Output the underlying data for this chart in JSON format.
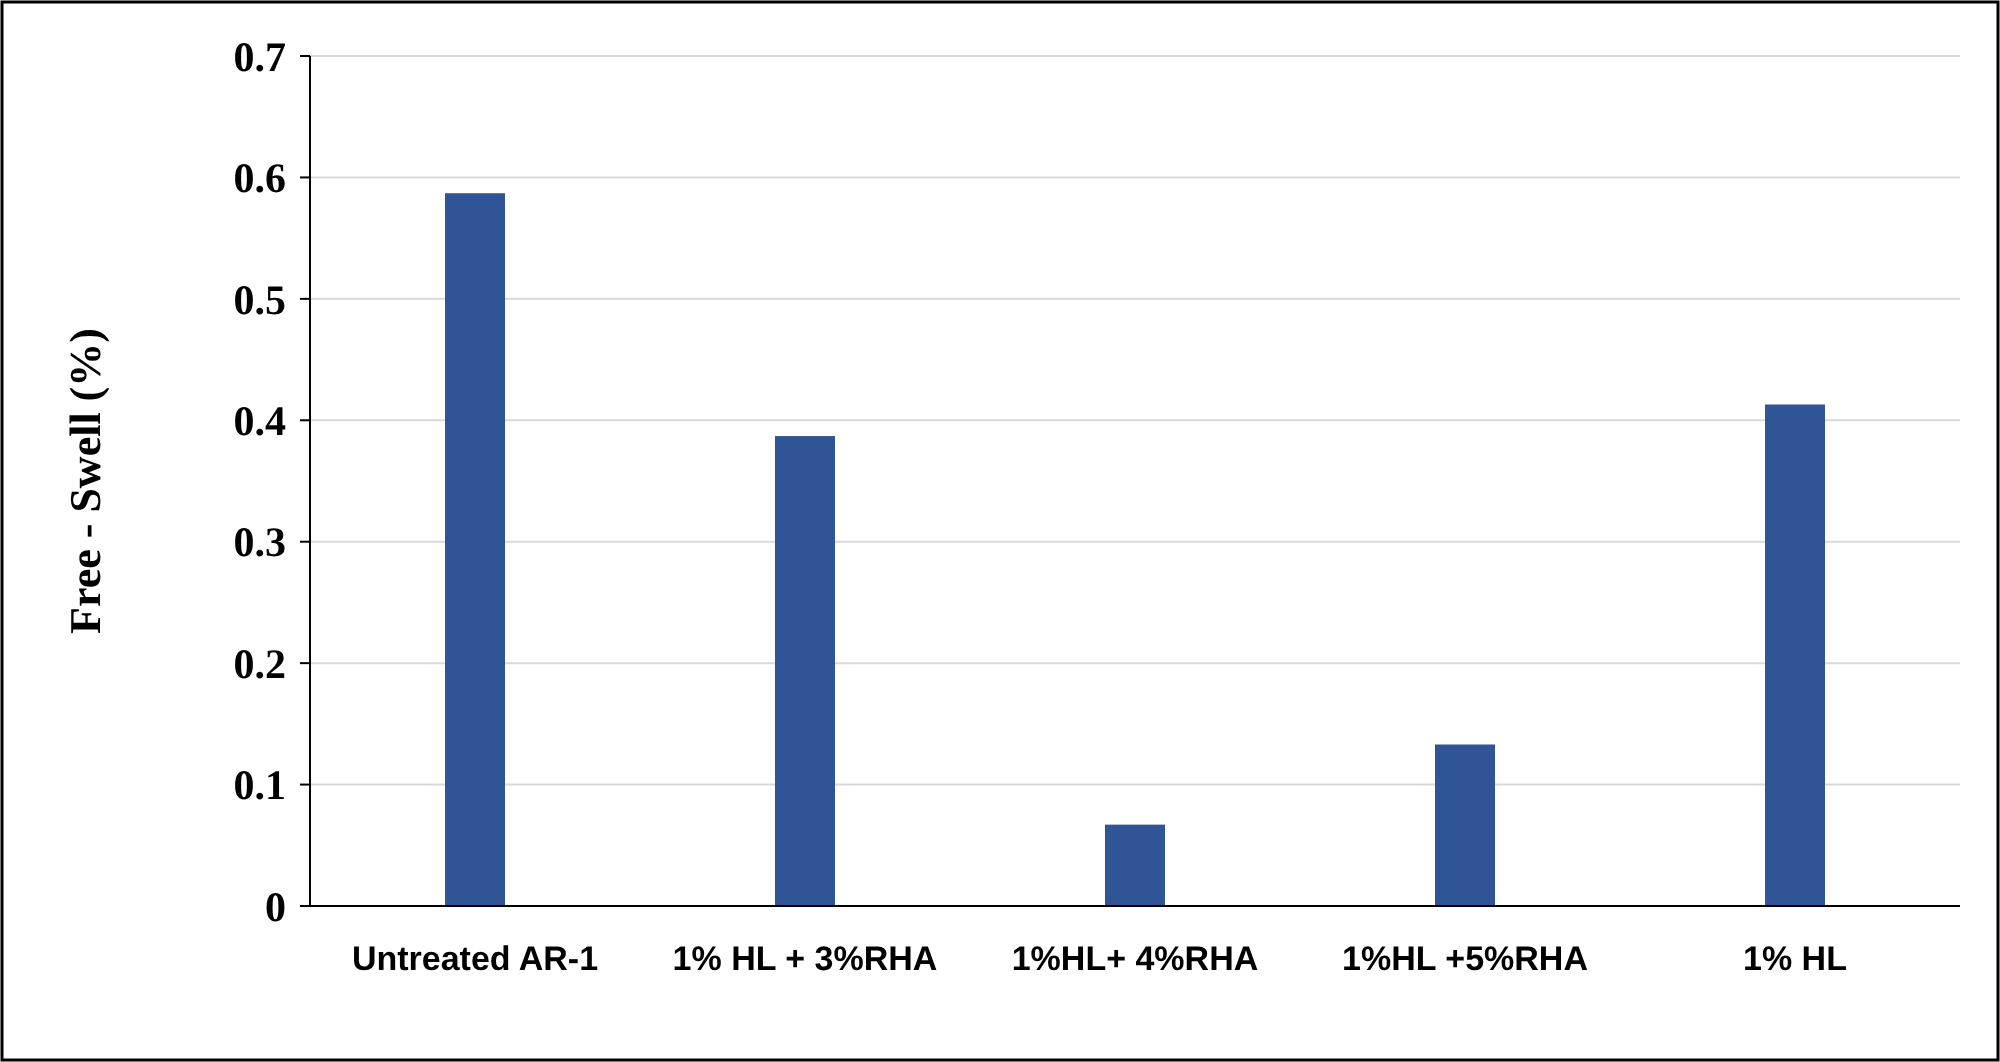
{
  "chart_data": {
    "type": "bar",
    "ylabel": "Free - Swell (%)",
    "categories": [
      "Untreated AR-1",
      "1% HL + 3%RHA",
      "1%HL+ 4%RHA",
      "1%HL +5%RHA",
      "1% HL"
    ],
    "values": [
      0.587,
      0.387,
      0.067,
      0.133,
      0.413
    ],
    "color": "#2f5597",
    "ylim": [
      0,
      0.7
    ],
    "yticks": [
      0,
      0.1,
      0.2,
      0.3,
      0.4,
      0.5,
      0.6,
      0.7
    ],
    "grid": "y"
  }
}
